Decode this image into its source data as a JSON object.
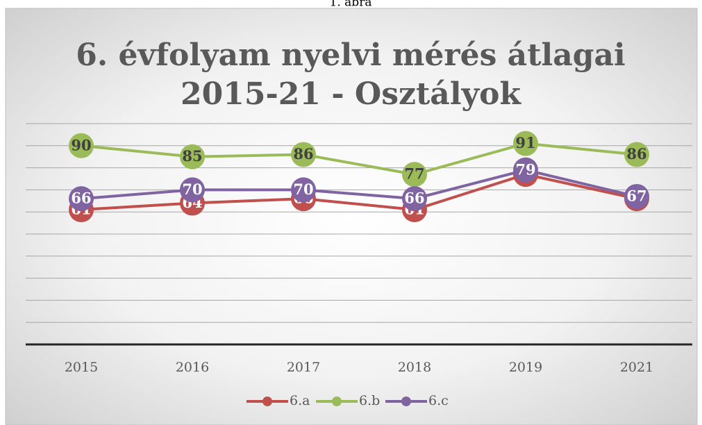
{
  "caption": "1. ábra",
  "chart_data": {
    "type": "line",
    "title": "6. évfolyam nyelvi mérés átlagai 2015-21 - Osztályok",
    "categories": [
      "2015",
      "2016",
      "2017",
      "2018",
      "2019",
      "2021"
    ],
    "series": [
      {
        "name": "6.a",
        "color": "#c0504d",
        "values": [
          61,
          64,
          66,
          61,
          77,
          66
        ]
      },
      {
        "name": "6.b",
        "color": "#9bbb59",
        "values": [
          90,
          85,
          86,
          77,
          91,
          86
        ]
      },
      {
        "name": "6.c",
        "color": "#8064a2",
        "values": [
          66,
          70,
          70,
          66,
          79,
          67
        ]
      }
    ],
    "ylim": [
      0,
      100
    ],
    "yticks": [
      0,
      10,
      20,
      30,
      40,
      50,
      60,
      70,
      80,
      90,
      100
    ],
    "grid": true,
    "legend": "bottom"
  }
}
